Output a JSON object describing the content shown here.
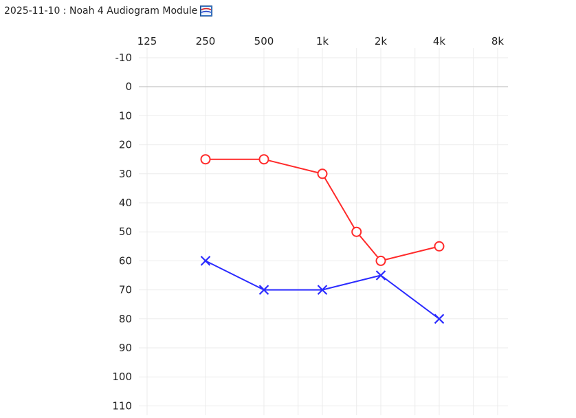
{
  "header": {
    "title": "2025-11-10 : Noah 4 Audiogram Module",
    "icon": "noah-module-icon"
  },
  "chart_data": {
    "type": "line",
    "title": "",
    "xlabel": "",
    "ylabel": "",
    "x_scale": "log2",
    "x_tick_values": [
      125,
      250,
      500,
      1000,
      2000,
      4000,
      8000
    ],
    "x_tick_labels": [
      "125",
      "250",
      "500",
      "1k",
      "2k",
      "4k",
      "8k"
    ],
    "x_gridlines": [
      125,
      250,
      500,
      750,
      1000,
      1500,
      2000,
      3000,
      4000,
      6000,
      8000
    ],
    "y_tick_values": [
      -10,
      0,
      10,
      20,
      30,
      40,
      50,
      60,
      70,
      80,
      90,
      100,
      110
    ],
    "y_inverted": true,
    "ylim": [
      -10,
      110
    ],
    "grid": true,
    "series": [
      {
        "marker": "circle",
        "color": "#ff2a2a",
        "points": [
          {
            "x": 250,
            "y": 25
          },
          {
            "x": 500,
            "y": 25
          },
          {
            "x": 1000,
            "y": 30
          },
          {
            "x": 1500,
            "y": 50
          },
          {
            "x": 2000,
            "y": 60
          },
          {
            "x": 4000,
            "y": 55
          }
        ]
      },
      {
        "marker": "cross",
        "color": "#2b2bff",
        "points": [
          {
            "x": 250,
            "y": 60
          },
          {
            "x": 500,
            "y": 70
          },
          {
            "x": 1000,
            "y": 70
          },
          {
            "x": 2000,
            "y": 65
          },
          {
            "x": 4000,
            "y": 80
          }
        ]
      }
    ]
  }
}
